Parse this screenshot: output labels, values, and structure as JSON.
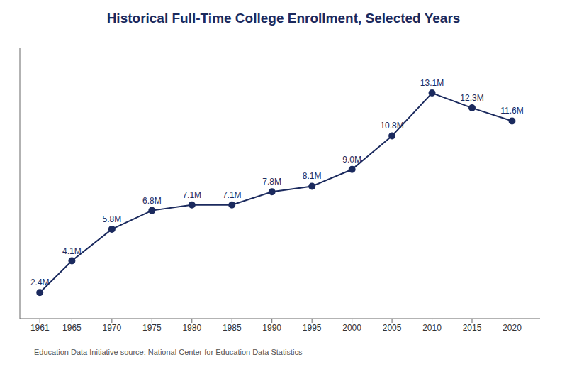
{
  "chart_data": {
    "type": "line",
    "title": "Historical Full-Time College Enrollment, Selected Years",
    "x": [
      1961,
      1965,
      1970,
      1975,
      1980,
      1985,
      1990,
      1995,
      2000,
      2005,
      2010,
      2015,
      2020
    ],
    "values": [
      2.4,
      4.1,
      5.8,
      6.8,
      7.1,
      7.1,
      7.8,
      8.1,
      9.0,
      10.8,
      13.1,
      12.3,
      11.6
    ],
    "value_labels": [
      "2.4M",
      "4.1M",
      "5.8M",
      "6.8M",
      "7.1M",
      "7.1M",
      "7.8M",
      "8.1M",
      "9.0M",
      "10.8M",
      "13.1M",
      "12.3M",
      "11.6M"
    ],
    "data_labels": true,
    "color": "#1b2a5e",
    "marker": "o",
    "xlim": [
      1958.5,
      2023.5
    ],
    "xticks": [
      1961,
      1965,
      1970,
      1975,
      1980,
      1985,
      1990,
      1995,
      2000,
      2005,
      2010,
      2015,
      2020
    ],
    "ylim": [
      1.0,
      15.5
    ],
    "tick_labels": "x",
    "grid": false,
    "annotations": [
      "Education Data Initiative source: National Center for Education Data Statistics"
    ]
  }
}
